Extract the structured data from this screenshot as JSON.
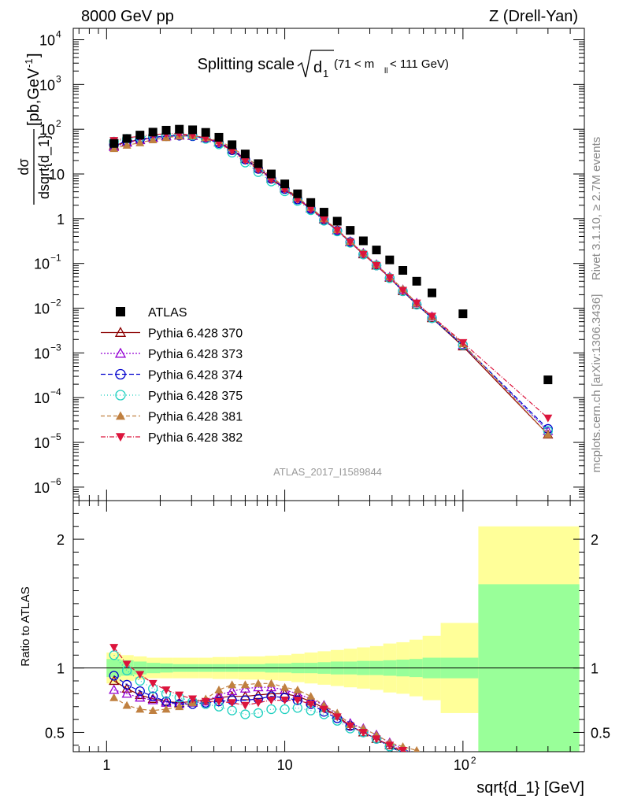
{
  "header": {
    "left": "8000 GeV pp",
    "right": "Z (Drell-Yan)"
  },
  "side": {
    "rivet": "Rivet 3.1.10, ≥ 2.7M events",
    "site": "mcplots.cern.ch [arXiv:1306.3436]"
  },
  "title": {
    "main": "Splitting scale",
    "sym": "d",
    "sub": "1",
    "cond_a": "(71 < m",
    "cond_sub": "ll",
    "cond_b": " < 111 GeV)"
  },
  "ylabel_top": {
    "num": "dσ",
    "den": "dsqrt{d_1}",
    "unit": "[pb,GeV",
    "unit_sup": "-1",
    "unit_end": "]"
  },
  "ylabel_bottom": "Ratio to ATLAS",
  "xlabel": "sqrt{d_1} [GeV]",
  "watermark": "ATLAS_2017_I1589844",
  "colors": {
    "data": "#000000",
    "band_inner": "#99ff99",
    "band_outer": "#ffff99"
  },
  "chart_data": [
    {
      "type": "scatter",
      "panel": "main",
      "xscale": "log",
      "yscale": "log",
      "xlim": [
        0.65,
        480
      ],
      "ylim": [
        5e-07,
        18000
      ],
      "x": [
        1.1,
        1.3,
        1.54,
        1.82,
        2.16,
        2.56,
        3.04,
        3.6,
        4.27,
        5.06,
        6.0,
        7.1,
        8.4,
        10.0,
        11.8,
        14.0,
        16.6,
        19.7,
        23.3,
        27.6,
        32.7,
        38.8,
        46.0,
        55.0,
        67.0,
        100.0,
        300.0
      ],
      "series": [
        {
          "name": "ATLAS",
          "color": "#000000",
          "marker": "square",
          "values": [
            48,
            62,
            74,
            86,
            95,
            100,
            97,
            85,
            66,
            45,
            28,
            17,
            10,
            6,
            3.6,
            2.3,
            1.4,
            0.88,
            0.55,
            0.32,
            0.2,
            0.12,
            0.07,
            0.04,
            0.022,
            0.0075,
            0.00025
          ]
        },
        {
          "name": "Pythia 6.428 370",
          "color": "#8b0000",
          "marker": "triangle-open",
          "dash": "",
          "values": [
            43,
            52,
            58,
            65,
            70,
            73,
            72,
            64,
            51,
            35,
            22,
            13.5,
            8.0,
            4.8,
            2.8,
            1.7,
            0.96,
            0.55,
            0.3,
            0.16,
            0.09,
            0.048,
            0.024,
            0.012,
            0.006,
            0.0014,
            1.5e-05
          ]
        },
        {
          "name": "Pythia 6.428 373",
          "color": "#9400d3",
          "marker": "triangle-open",
          "dash": "2,2",
          "values": [
            40,
            50,
            57,
            64,
            69,
            72,
            71,
            63,
            52,
            37,
            23.5,
            14.5,
            8.5,
            5.0,
            2.9,
            1.75,
            1.0,
            0.56,
            0.31,
            0.17,
            0.095,
            0.05,
            0.026,
            0.013,
            0.0065,
            0.0015,
            1.8e-05
          ]
        },
        {
          "name": "Pythia 6.428 374",
          "color": "#0000cd",
          "marker": "circle-open",
          "dash": "6,3",
          "values": [
            45,
            54,
            60,
            66,
            70,
            72,
            70,
            62,
            49,
            34,
            21,
            13,
            7.8,
            4.6,
            2.7,
            1.65,
            0.93,
            0.54,
            0.3,
            0.16,
            0.09,
            0.047,
            0.024,
            0.012,
            0.006,
            0.0015,
            2e-05
          ]
        },
        {
          "name": "Pythia 6.428 375",
          "color": "#20d0c0",
          "marker": "circle-open",
          "dash": "1,3",
          "values": [
            53,
            61,
            66,
            72,
            76,
            77,
            72,
            61,
            46,
            30,
            18,
            11,
            6.8,
            4.1,
            2.5,
            1.55,
            0.9,
            0.52,
            0.29,
            0.16,
            0.09,
            0.047,
            0.024,
            0.012,
            0.006,
            0.0015,
            1.8e-05
          ]
        },
        {
          "name": "Pythia 6.428 381",
          "color": "#c08040",
          "marker": "triangle",
          "dash": "5,3",
          "values": [
            37,
            44,
            50,
            58,
            65,
            70,
            71,
            65,
            55,
            39,
            24.5,
            15,
            8.8,
            5.1,
            3.0,
            1.8,
            1.0,
            0.57,
            0.31,
            0.17,
            0.095,
            0.05,
            0.027,
            0.013,
            0.0065,
            0.0016,
            1.5e-05
          ]
        },
        {
          "name": "Pythia 6.428 382",
          "color": "#dc143c",
          "marker": "triangle-down",
          "dash": "6,2,1,2",
          "values": [
            56,
            64,
            70,
            76,
            79,
            79,
            74,
            63,
            49,
            33,
            20,
            12.5,
            7.5,
            4.5,
            2.7,
            1.65,
            0.95,
            0.55,
            0.3,
            0.16,
            0.09,
            0.048,
            0.025,
            0.013,
            0.0066,
            0.0017,
            3.5e-05
          ]
        }
      ]
    },
    {
      "type": "line",
      "panel": "ratio",
      "xscale": "log",
      "xlim": [
        0.65,
        480
      ],
      "ylim": [
        0.35,
        2.3
      ],
      "ylabel": "Ratio to ATLAS",
      "xlabel": "sqrt{d_1} [GeV]",
      "band_edges": [
        1.0,
        1.2,
        1.42,
        1.68,
        2.0,
        2.36,
        2.8,
        3.3,
        3.93,
        4.65,
        5.5,
        6.55,
        7.75,
        9.2,
        10.9,
        12.9,
        15.3,
        18.1,
        21.5,
        25.4,
        30.1,
        35.7,
        42.3,
        50.1,
        59.4,
        75.0,
        122.0,
        450.0
      ],
      "band_inner": [
        0.07,
        0.06,
        0.05,
        0.04,
        0.035,
        0.03,
        0.03,
        0.03,
        0.03,
        0.03,
        0.03,
        0.03,
        0.035,
        0.035,
        0.04,
        0.04,
        0.045,
        0.05,
        0.05,
        0.055,
        0.055,
        0.06,
        0.065,
        0.07,
        0.08,
        0.08,
        0.65
      ],
      "band_outer": [
        0.12,
        0.1,
        0.09,
        0.08,
        0.08,
        0.08,
        0.08,
        0.08,
        0.085,
        0.085,
        0.09,
        0.09,
        0.095,
        0.1,
        0.11,
        0.12,
        0.13,
        0.14,
        0.15,
        0.16,
        0.17,
        0.19,
        0.2,
        0.22,
        0.25,
        0.35,
        1.1
      ],
      "x": [
        1.1,
        1.3,
        1.54,
        1.82,
        2.16,
        2.56,
        3.04,
        3.6,
        4.27,
        5.06,
        6.0,
        7.1,
        8.4,
        10.0,
        11.8,
        14.0,
        16.6,
        19.7,
        23.3,
        27.6,
        32.7,
        38.8,
        46.0,
        55.0
      ],
      "series": [
        {
          "name": "Pythia 6.428 370",
          "values": [
            0.9,
            0.84,
            0.79,
            0.76,
            0.74,
            0.73,
            0.74,
            0.75,
            0.77,
            0.78,
            0.78,
            0.79,
            0.8,
            0.8,
            0.78,
            0.74,
            0.69,
            0.63,
            0.55,
            0.5,
            0.45,
            0.4,
            0.34,
            0.3
          ]
        },
        {
          "name": "Pythia 6.428 373",
          "values": [
            0.83,
            0.8,
            0.77,
            0.75,
            0.73,
            0.72,
            0.73,
            0.74,
            0.79,
            0.82,
            0.84,
            0.85,
            0.85,
            0.83,
            0.8,
            0.76,
            0.71,
            0.64,
            0.57,
            0.53,
            0.48,
            0.42,
            0.37,
            0.33
          ]
        },
        {
          "name": "Pythia 6.428 374",
          "values": [
            0.94,
            0.87,
            0.82,
            0.78,
            0.74,
            0.72,
            0.72,
            0.73,
            0.74,
            0.75,
            0.75,
            0.76,
            0.78,
            0.77,
            0.75,
            0.72,
            0.66,
            0.61,
            0.55,
            0.5,
            0.45,
            0.39,
            0.34,
            0.3
          ]
        },
        {
          "name": "Pythia 6.428 375",
          "values": [
            1.1,
            0.98,
            0.9,
            0.84,
            0.8,
            0.77,
            0.74,
            0.72,
            0.7,
            0.67,
            0.64,
            0.65,
            0.68,
            0.68,
            0.69,
            0.67,
            0.64,
            0.59,
            0.53,
            0.5,
            0.45,
            0.39,
            0.34,
            0.3
          ]
        },
        {
          "name": "Pythia 6.428 381",
          "values": [
            0.77,
            0.71,
            0.68,
            0.67,
            0.68,
            0.7,
            0.73,
            0.76,
            0.83,
            0.87,
            0.87,
            0.88,
            0.88,
            0.85,
            0.83,
            0.78,
            0.71,
            0.65,
            0.56,
            0.53,
            0.48,
            0.42,
            0.39,
            0.36
          ]
        },
        {
          "name": "Pythia 6.428 382",
          "values": [
            1.16,
            1.03,
            0.95,
            0.88,
            0.83,
            0.79,
            0.76,
            0.74,
            0.74,
            0.73,
            0.71,
            0.73,
            0.75,
            0.75,
            0.75,
            0.72,
            0.68,
            0.62,
            0.55,
            0.5,
            0.45,
            0.4,
            0.36,
            0.32
          ]
        }
      ]
    }
  ]
}
